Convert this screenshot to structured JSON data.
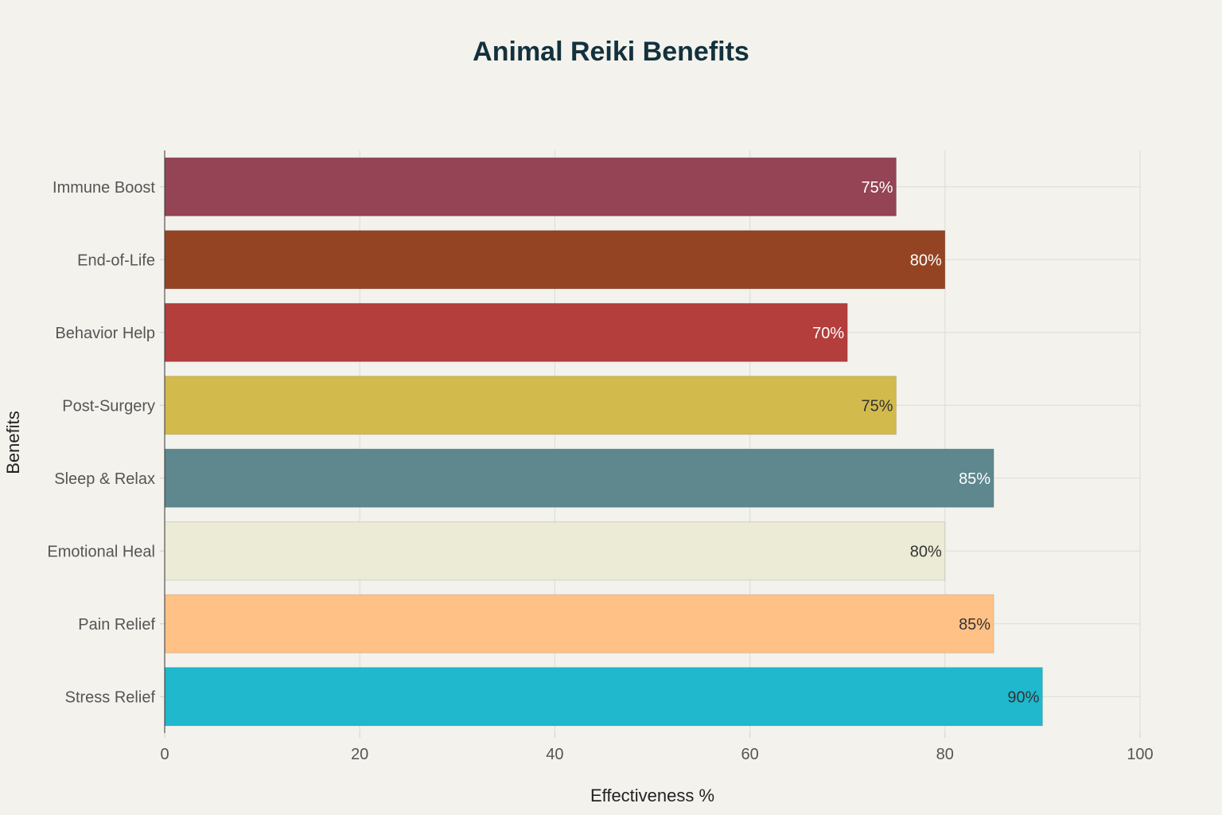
{
  "chart_data": {
    "type": "bar",
    "orientation": "horizontal",
    "title": "Animal Reiki Benefits",
    "xlabel": "Effectiveness %",
    "ylabel": "Benefits",
    "xlim": [
      0,
      100
    ],
    "xticks": [
      0,
      20,
      40,
      60,
      80,
      100
    ],
    "grid": true,
    "legend": "none",
    "categories": [
      "Immune Boost",
      "End-of-Life",
      "Behavior Help",
      "Post-Surgery",
      "Sleep & Relax",
      "Emotional Heal",
      "Pain Relief",
      "Stress Relief"
    ],
    "values": [
      75,
      80,
      70,
      75,
      85,
      80,
      85,
      90
    ],
    "data_labels": [
      "75%",
      "80%",
      "70%",
      "75%",
      "85%",
      "80%",
      "85%",
      "90%"
    ],
    "colors": [
      "#944454",
      "#944422",
      "#b33e3c",
      "#d2ba4c",
      "#5e878e",
      "#ecebd5",
      "#ffc185",
      "#1fb8cd"
    ],
    "label_colors": [
      "#ffffff",
      "#ffffff",
      "#ffffff",
      "#333333",
      "#ffffff",
      "#333333",
      "#333333",
      "#333333"
    ]
  }
}
